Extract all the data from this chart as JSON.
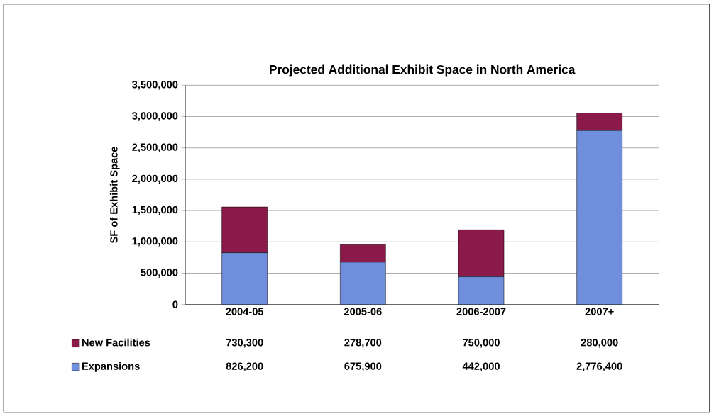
{
  "chart_data": {
    "type": "bar",
    "title": "Projected Additional Exhibit Space in North America",
    "ylabel": "SF of Exhibit Space",
    "categories": [
      "2004-05",
      "2005-06",
      "2006-2007",
      "2007+"
    ],
    "series": [
      {
        "name": "Expansions",
        "color": "#6f8fdc",
        "values": [
          826200,
          675900,
          442000,
          2776400
        ],
        "value_labels": [
          "826,200",
          "675,900",
          "442,000",
          "2,776,400"
        ]
      },
      {
        "name": "New Facilities",
        "color": "#8b1a4a",
        "values": [
          730300,
          278700,
          750000,
          280000
        ],
        "value_labels": [
          "730,300",
          "278,700",
          "750,000",
          "280,000"
        ]
      }
    ],
    "stacked": true,
    "ylim": [
      0,
      3500000
    ],
    "yticks": [
      0,
      {
        "value": 500000,
        "label": "500,000"
      },
      {
        "value": 1000000,
        "label": "1,000,000"
      },
      {
        "value": 1500000,
        "label": "1,500,000"
      },
      {
        "value": 2000000,
        "label": "2,000,000"
      },
      {
        "value": 2500000,
        "label": "2,500,000"
      },
      {
        "value": 3000000,
        "label": "3,000,000"
      },
      {
        "value": 3500000,
        "label": "3,500,000"
      }
    ],
    "grid": "y",
    "legend": "bottom left"
  }
}
